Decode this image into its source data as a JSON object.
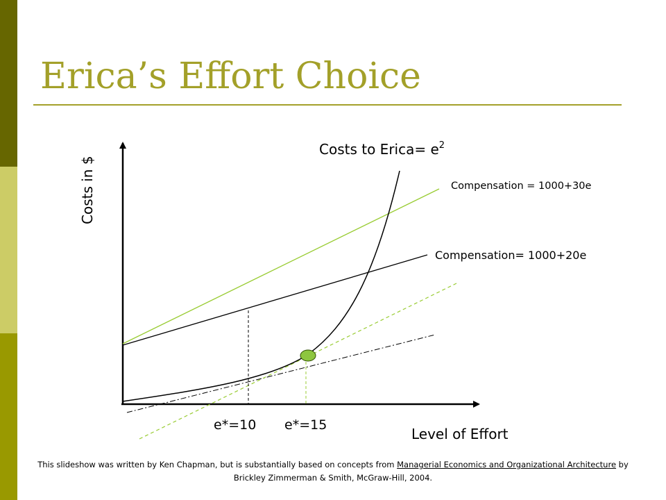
{
  "slide": {
    "title": "Erica’s Effort Choice",
    "colors": {
      "title": "#a3a029",
      "sidebar_dark": "#666600",
      "sidebar_light": "#cccc66",
      "sidebar_mid": "#999900",
      "rule": "#a3a029",
      "comp30_line": "#99cc33",
      "tangent_dashed": "#99cc33",
      "optimum_dot": "#8dc63f",
      "ink": "#000000"
    }
  },
  "diagram": {
    "y_axis_label": "Costs in $",
    "x_axis_label": "Level of Effort",
    "cost_curve_label": "Costs to Erica= e",
    "cost_curve_exponent": "2",
    "comp30_label": "Compensation = 1000+30e",
    "comp20_label": "Compensation= 1000+20e",
    "tick_e10_label": "e*=10",
    "tick_e15_label": "e*=15",
    "optimum_marker": "optimum point on cost curve"
  },
  "footer": {
    "part1": "This slideshow was written by Ken Chapman, but is substantially based on concepts from ",
    "book_title": "Managerial Economics and Organizational Architecture",
    "part2": " by Brickley Zimmerman & Smith, McGraw-Hill, 2004."
  }
}
